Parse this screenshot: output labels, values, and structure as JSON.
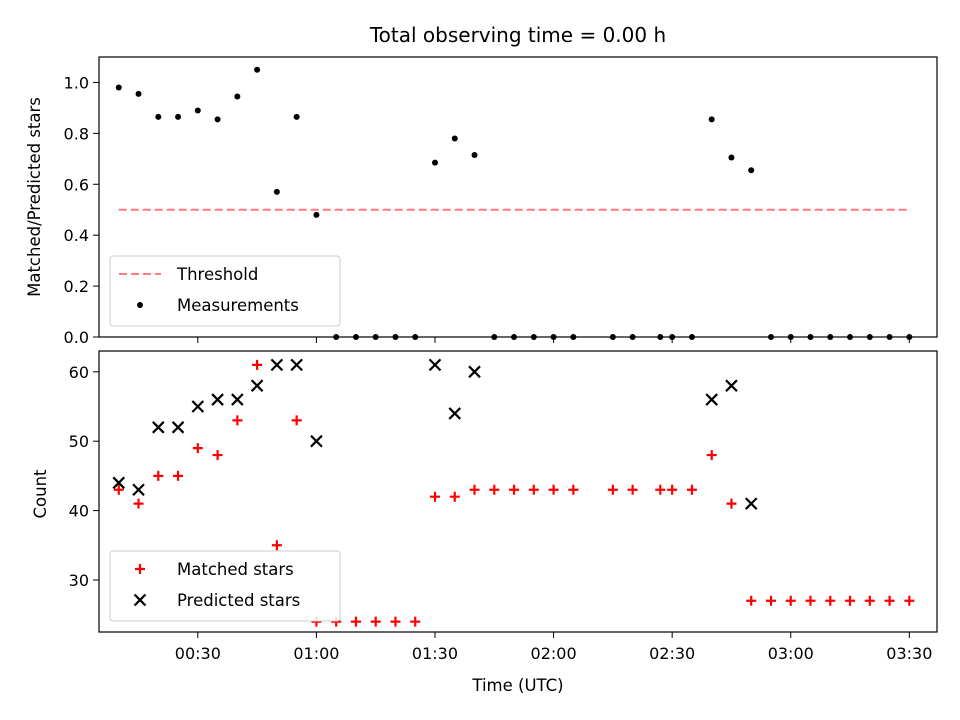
{
  "chart_data": [
    {
      "type": "scatter",
      "title": "Total observing time = 0.00 h",
      "xlabel": "",
      "ylabel": "Matched/Predicted stars",
      "xlim": [
        "00:05",
        "03:37"
      ],
      "ylim": [
        0,
        1.1
      ],
      "yticks": [
        "0.0",
        "0.2",
        "0.4",
        "0.6",
        "0.8",
        "1.0"
      ],
      "legend_position": "lower-left",
      "series": [
        {
          "name": "Threshold",
          "kind": "line",
          "style": "dashed",
          "color": "#ff7b7b",
          "points": [
            {
              "x": "00:10",
              "y": 0.5
            },
            {
              "x": "03:30",
              "y": 0.5
            }
          ]
        },
        {
          "name": "Measurements",
          "kind": "scatter",
          "marker": "dot",
          "color": "#000000",
          "points": [
            {
              "x": "00:10",
              "y": 0.98
            },
            {
              "x": "00:15",
              "y": 0.955
            },
            {
              "x": "00:20",
              "y": 0.865
            },
            {
              "x": "00:25",
              "y": 0.865
            },
            {
              "x": "00:30",
              "y": 0.89
            },
            {
              "x": "00:35",
              "y": 0.855
            },
            {
              "x": "00:40",
              "y": 0.945
            },
            {
              "x": "00:45",
              "y": 1.05
            },
            {
              "x": "00:50",
              "y": 0.57
            },
            {
              "x": "00:55",
              "y": 0.865
            },
            {
              "x": "01:00",
              "y": 0.48
            },
            {
              "x": "01:05",
              "y": 0.0
            },
            {
              "x": "01:10",
              "y": 0.0
            },
            {
              "x": "01:15",
              "y": 0.0
            },
            {
              "x": "01:20",
              "y": 0.0
            },
            {
              "x": "01:25",
              "y": 0.0
            },
            {
              "x": "01:30",
              "y": 0.685
            },
            {
              "x": "01:35",
              "y": 0.78
            },
            {
              "x": "01:40",
              "y": 0.715
            },
            {
              "x": "01:45",
              "y": 0.0
            },
            {
              "x": "01:50",
              "y": 0.0
            },
            {
              "x": "01:55",
              "y": 0.0
            },
            {
              "x": "02:00",
              "y": 0.0
            },
            {
              "x": "02:05",
              "y": 0.0
            },
            {
              "x": "02:15",
              "y": 0.0
            },
            {
              "x": "02:20",
              "y": 0.0
            },
            {
              "x": "02:27",
              "y": 0.0
            },
            {
              "x": "02:30",
              "y": 0.0
            },
            {
              "x": "02:35",
              "y": 0.0
            },
            {
              "x": "02:40",
              "y": 0.855
            },
            {
              "x": "02:45",
              "y": 0.705
            },
            {
              "x": "02:50",
              "y": 0.655
            },
            {
              "x": "02:55",
              "y": 0.0
            },
            {
              "x": "03:00",
              "y": 0.0
            },
            {
              "x": "03:05",
              "y": 0.0
            },
            {
              "x": "03:10",
              "y": 0.0
            },
            {
              "x": "03:15",
              "y": 0.0
            },
            {
              "x": "03:20",
              "y": 0.0
            },
            {
              "x": "03:25",
              "y": 0.0
            },
            {
              "x": "03:30",
              "y": 0.0
            }
          ]
        }
      ]
    },
    {
      "type": "scatter",
      "title": "",
      "xlabel": "Time (UTC)",
      "ylabel": "Count",
      "xlim": [
        "00:05",
        "03:37"
      ],
      "ylim": [
        22.5,
        63
      ],
      "xticks": [
        "00:30",
        "01:00",
        "01:30",
        "02:00",
        "02:30",
        "03:00",
        "03:30"
      ],
      "yticks": [
        "30",
        "40",
        "50",
        "60"
      ],
      "legend_position": "lower-left",
      "series": [
        {
          "name": "Matched stars",
          "kind": "scatter",
          "marker": "plus",
          "color": "#ff0000",
          "points": [
            {
              "x": "00:10",
              "y": 43
            },
            {
              "x": "00:15",
              "y": 41
            },
            {
              "x": "00:20",
              "y": 45
            },
            {
              "x": "00:25",
              "y": 45
            },
            {
              "x": "00:30",
              "y": 49
            },
            {
              "x": "00:35",
              "y": 48
            },
            {
              "x": "00:40",
              "y": 53
            },
            {
              "x": "00:45",
              "y": 61
            },
            {
              "x": "00:50",
              "y": 35
            },
            {
              "x": "00:55",
              "y": 53
            },
            {
              "x": "01:00",
              "y": 24
            },
            {
              "x": "01:05",
              "y": 24
            },
            {
              "x": "01:10",
              "y": 24
            },
            {
              "x": "01:15",
              "y": 24
            },
            {
              "x": "01:20",
              "y": 24
            },
            {
              "x": "01:25",
              "y": 24
            },
            {
              "x": "01:30",
              "y": 42
            },
            {
              "x": "01:35",
              "y": 42
            },
            {
              "x": "01:40",
              "y": 43
            },
            {
              "x": "01:45",
              "y": 43
            },
            {
              "x": "01:50",
              "y": 43
            },
            {
              "x": "01:55",
              "y": 43
            },
            {
              "x": "02:00",
              "y": 43
            },
            {
              "x": "02:05",
              "y": 43
            },
            {
              "x": "02:15",
              "y": 43
            },
            {
              "x": "02:20",
              "y": 43
            },
            {
              "x": "02:27",
              "y": 43
            },
            {
              "x": "02:30",
              "y": 43
            },
            {
              "x": "02:35",
              "y": 43
            },
            {
              "x": "02:40",
              "y": 48
            },
            {
              "x": "02:45",
              "y": 41
            },
            {
              "x": "02:50",
              "y": 27
            },
            {
              "x": "02:55",
              "y": 27
            },
            {
              "x": "03:00",
              "y": 27
            },
            {
              "x": "03:05",
              "y": 27
            },
            {
              "x": "03:10",
              "y": 27
            },
            {
              "x": "03:15",
              "y": 27
            },
            {
              "x": "03:20",
              "y": 27
            },
            {
              "x": "03:25",
              "y": 27
            },
            {
              "x": "03:30",
              "y": 27
            }
          ]
        },
        {
          "name": "Predicted stars",
          "kind": "scatter",
          "marker": "x",
          "color": "#000000",
          "points": [
            {
              "x": "00:10",
              "y": 44
            },
            {
              "x": "00:15",
              "y": 43
            },
            {
              "x": "00:20",
              "y": 52
            },
            {
              "x": "00:25",
              "y": 52
            },
            {
              "x": "00:30",
              "y": 55
            },
            {
              "x": "00:35",
              "y": 56
            },
            {
              "x": "00:40",
              "y": 56
            },
            {
              "x": "00:45",
              "y": 58
            },
            {
              "x": "00:50",
              "y": 61
            },
            {
              "x": "00:55",
              "y": 61
            },
            {
              "x": "01:00",
              "y": 50
            },
            {
              "x": "01:30",
              "y": 61
            },
            {
              "x": "01:35",
              "y": 54
            },
            {
              "x": "01:40",
              "y": 60
            },
            {
              "x": "02:40",
              "y": 56
            },
            {
              "x": "02:45",
              "y": 58
            },
            {
              "x": "02:50",
              "y": 41
            }
          ]
        }
      ]
    }
  ]
}
